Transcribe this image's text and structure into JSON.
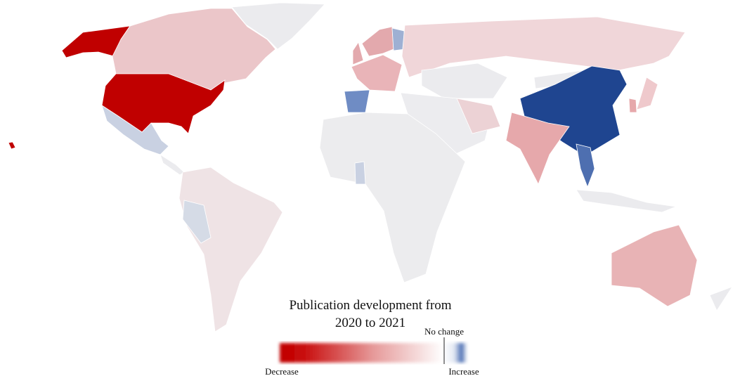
{
  "legend": {
    "title_lines": [
      "Publication development from",
      "2020 to 2021"
    ],
    "no_change": "No change",
    "decrease": "Decrease",
    "increase": "Increase"
  }
}
